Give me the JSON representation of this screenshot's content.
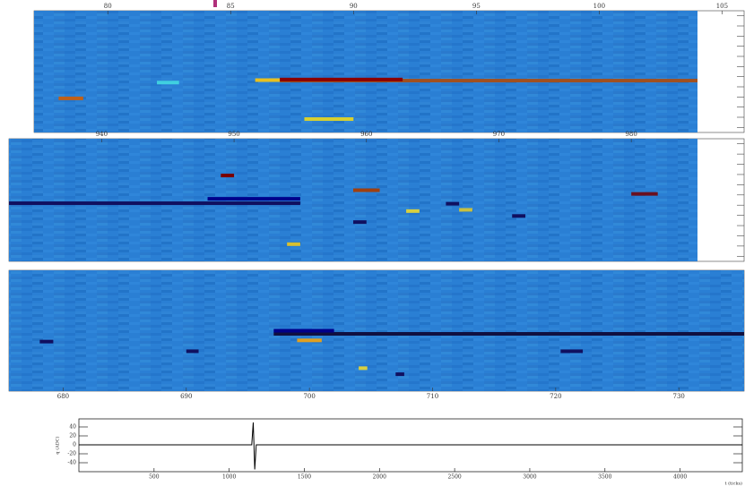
{
  "chart_data": [
    {
      "type": "heatmap",
      "xaxis": "top",
      "xlim": [
        77,
        104
      ],
      "xticks": [
        80,
        85,
        90,
        95,
        100,
        105
      ],
      "ylim": [
        0,
        100
      ],
      "background": "#2a7fd4",
      "tracks": [
        {
          "x": [
            87.0,
            104.0
          ],
          "y": 42.6,
          "color": "#a05020"
        },
        {
          "x": [
            87.0,
            92.0
          ],
          "y": 43.5,
          "color": "#8b0000"
        },
        {
          "x": [
            78.0,
            79.0
          ],
          "y": 28,
          "color": "#c06018"
        },
        {
          "x": [
            86.0,
            87.0
          ],
          "y": 43,
          "color": "#e8c020"
        },
        {
          "x": [
            88.0,
            90.0
          ],
          "y": 11,
          "color": "#d8d030"
        },
        {
          "x": [
            82.0,
            82.9
          ],
          "y": 41,
          "color": "#40d0e0"
        }
      ]
    },
    {
      "type": "heatmap",
      "xaxis": "top",
      "xlim": [
        933,
        985
      ],
      "xticks": [
        940,
        950,
        960,
        970,
        980
      ],
      "ylim": [
        0,
        100
      ],
      "background": "#2a7fd4",
      "tracks": [
        {
          "x": [
            933,
            955.0
          ],
          "y": 47.4,
          "color": "#101060"
        },
        {
          "x": [
            948.0,
            955.0
          ],
          "y": 51,
          "color": "#00008b"
        },
        {
          "x": [
            949.0,
            950.0
          ],
          "y": 70,
          "color": "#7a0000"
        },
        {
          "x": [
            959.0,
            961.0
          ],
          "y": 58,
          "color": "#a04010"
        },
        {
          "x": [
            954.0,
            955.0
          ],
          "y": 14,
          "color": "#d8c030"
        },
        {
          "x": [
            959.0,
            960.0
          ],
          "y": 32,
          "color": "#101060"
        },
        {
          "x": [
            963.0,
            964.0
          ],
          "y": 41,
          "color": "#d8d040"
        },
        {
          "x": [
            966.0,
            967.0
          ],
          "y": 47,
          "color": "#101060"
        },
        {
          "x": [
            967.0,
            968.0
          ],
          "y": 42,
          "color": "#c8c040"
        },
        {
          "x": [
            971.0,
            972.0
          ],
          "y": 37,
          "color": "#101060"
        },
        {
          "x": [
            980.0,
            982.0
          ],
          "y": 55,
          "color": "#6a1020"
        }
      ]
    },
    {
      "type": "heatmap",
      "xaxis": "bottom",
      "xlim": [
        675.6,
        735.3
      ],
      "xticks": [
        680,
        690,
        700,
        710,
        720,
        730
      ],
      "ylim": [
        0,
        100
      ],
      "background": "#2a7fd4",
      "tracks": [
        {
          "x": [
            697.1,
            735.3
          ],
          "y": 47.4,
          "color": "#101040"
        },
        {
          "x": [
            697.1,
            702.0
          ],
          "y": 50,
          "color": "#00008b"
        },
        {
          "x": [
            699.0,
            701.0
          ],
          "y": 42,
          "color": "#e0a020"
        },
        {
          "x": [
            678.1,
            679.2
          ],
          "y": 41,
          "color": "#101060"
        },
        {
          "x": [
            690.0,
            691.0
          ],
          "y": 33,
          "color": "#101060"
        },
        {
          "x": [
            704.0,
            704.7
          ],
          "y": 19,
          "color": "#d8d040"
        },
        {
          "x": [
            707.0,
            707.7
          ],
          "y": 14,
          "color": "#101060"
        },
        {
          "x": [
            720.4,
            722.2
          ],
          "y": 33,
          "color": "#101060"
        }
      ]
    },
    {
      "type": "line",
      "xlabel": "t (ticks)",
      "ylabel": "q (ADC)",
      "color": "#000000",
      "xlim": [
        0,
        4414
      ],
      "xticks": [
        500,
        1000,
        1500,
        2000,
        2500,
        3000,
        3500,
        4000
      ],
      "ylim": [
        -60,
        58
      ],
      "yticks": [
        40,
        20,
        0,
        -20,
        -40
      ],
      "x": [
        0,
        1150,
        1160,
        1170,
        1180,
        4414
      ],
      "values": [
        0,
        0,
        50,
        -55,
        0,
        0
      ]
    }
  ]
}
